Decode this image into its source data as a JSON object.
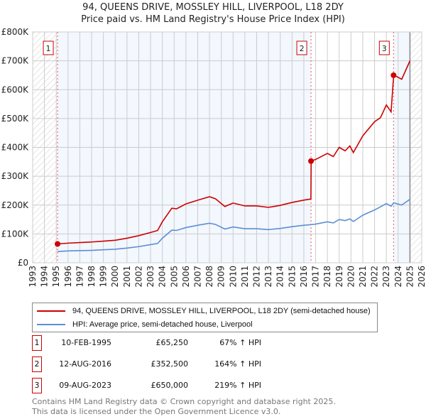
{
  "chart_data": {
    "type": "line",
    "title": "94, QUEENS DRIVE, MOSSLEY HILL, LIVERPOOL, L18 2DY",
    "subtitle": "Price paid vs. HM Land Registry's House Price Index (HPI)",
    "xlim": [
      1993,
      2026
    ],
    "ylim": [
      0,
      800000
    ],
    "x_ticks": [
      "1993",
      "1994",
      "1995",
      "1996",
      "1997",
      "1998",
      "1999",
      "2000",
      "2001",
      "2002",
      "2003",
      "2004",
      "2005",
      "2006",
      "2007",
      "2008",
      "2009",
      "2010",
      "2011",
      "2012",
      "2013",
      "2014",
      "2015",
      "2016",
      "2017",
      "2018",
      "2019",
      "2020",
      "2021",
      "2022",
      "2023",
      "2024",
      "2025",
      "2026"
    ],
    "y_ticks": [
      {
        "v": 0,
        "label": "£0"
      },
      {
        "v": 100000,
        "label": "£100K"
      },
      {
        "v": 200000,
        "label": "£200K"
      },
      {
        "v": 300000,
        "label": "£300K"
      },
      {
        "v": 400000,
        "label": "£400K"
      },
      {
        "v": 500000,
        "label": "£500K"
      },
      {
        "v": 600000,
        "label": "£600K"
      },
      {
        "v": 700000,
        "label": "£700K"
      },
      {
        "v": 800000,
        "label": "£800K"
      }
    ],
    "grid": true,
    "series": [
      {
        "name": "94, QUEENS DRIVE, MOSSLEY HILL, LIVERPOOL, L18 2DY (semi-detached house)",
        "color": "#cc0000",
        "x": [
          1995.11,
          1996,
          1997,
          1998,
          1999,
          2000,
          2001,
          2002,
          2003,
          2003.6,
          2004,
          2004.8,
          2005.2,
          2006,
          2007,
          2008,
          2008.5,
          2009.3,
          2010,
          2011,
          2012,
          2013,
          2014,
          2015,
          2016,
          2016.6,
          2016.62,
          2017,
          2018,
          2018.5,
          2019,
          2019.5,
          2019.9,
          2020.2,
          2021,
          2022,
          2022.5,
          2023,
          2023.4,
          2023.62,
          2023.9,
          2024.3,
          2025
        ],
        "y": [
          65250,
          68000,
          70000,
          72000,
          75000,
          78000,
          85000,
          94000,
          105000,
          112000,
          142000,
          189000,
          187000,
          204000,
          217000,
          229000,
          222000,
          195000,
          207000,
          197000,
          197000,
          192000,
          199000,
          209000,
          217000,
          221000,
          352500,
          358000,
          379000,
          368000,
          400000,
          388000,
          405000,
          382000,
          440000,
          489000,
          503000,
          547000,
          523000,
          650000,
          645000,
          636000,
          700000
        ]
      },
      {
        "name": "HPI: Average price, semi-detached house, Liverpool",
        "color": "#5b8fd4",
        "x": [
          1995.11,
          1996,
          1997,
          1998,
          1999,
          2000,
          2001,
          2002,
          2003,
          2003.6,
          2004,
          2004.8,
          2005.2,
          2006,
          2007,
          2008,
          2008.5,
          2009.3,
          2010,
          2011,
          2012,
          2013,
          2014,
          2015,
          2016,
          2016.6,
          2017,
          2018,
          2018.5,
          2019,
          2019.5,
          2019.9,
          2020.2,
          2021,
          2022,
          2023,
          2023.4,
          2023.62,
          2024.3,
          2025
        ],
        "y": [
          39000,
          41000,
          42000,
          43000,
          45000,
          47000,
          51000,
          56000,
          63000,
          67000,
          85000,
          113000,
          112000,
          122000,
          130000,
          137000,
          133000,
          117000,
          124000,
          118000,
          118000,
          115000,
          119000,
          125000,
          130000,
          132000,
          134000,
          142000,
          138000,
          150000,
          146000,
          152000,
          143000,
          165000,
          183000,
          205000,
          196000,
          208000,
          200000,
          220000
        ]
      }
    ],
    "sales": [
      {
        "num": "1",
        "x": 1995.11,
        "y": 65250,
        "date": "10-FEB-1995",
        "price": "£65,250",
        "hpi": "67% ↑ HPI"
      },
      {
        "num": "2",
        "x": 2016.61,
        "y": 352500,
        "date": "12-AUG-2016",
        "price": "£352,500",
        "hpi": "164% ↑ HPI"
      },
      {
        "num": "3",
        "x": 2023.61,
        "y": 650000,
        "date": "09-AUG-2023",
        "price": "£650,000",
        "hpi": "219% ↑ HPI"
      }
    ],
    "data_end": 2025.0,
    "legend_position": "below"
  },
  "footer": {
    "line1": "Contains HM Land Registry data © Crown copyright and database right 2025.",
    "line2": "This data is licensed under the Open Government Licence v3.0."
  }
}
